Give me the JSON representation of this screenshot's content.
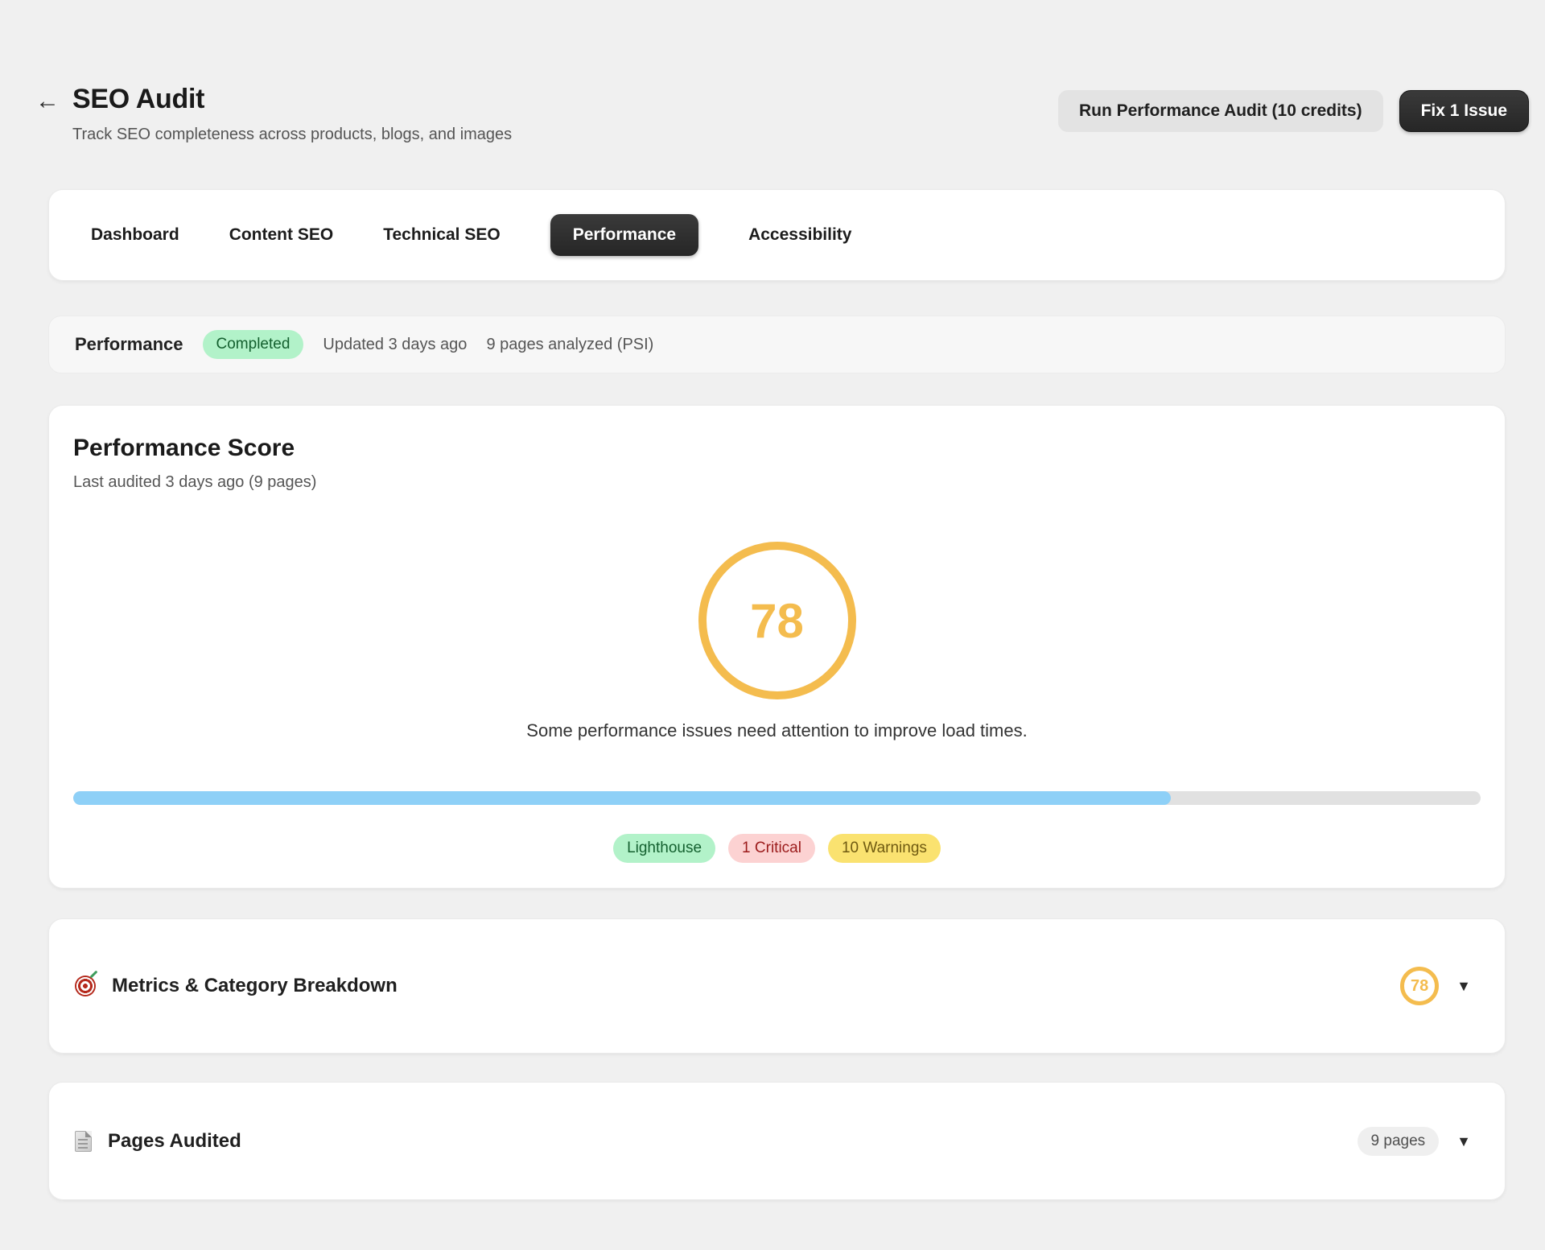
{
  "header": {
    "back_icon": "←",
    "title": "SEO Audit",
    "subtitle": "Track SEO completeness across products, blogs, and images",
    "run_audit_label": "Run Performance Audit (10 credits)",
    "fix_issue_label": "Fix 1 Issue"
  },
  "tabs": {
    "items": [
      {
        "label": "Dashboard",
        "active": false
      },
      {
        "label": "Content SEO",
        "active": false
      },
      {
        "label": "Technical SEO",
        "active": false
      },
      {
        "label": "Performance",
        "active": true
      },
      {
        "label": "Accessibility",
        "active": false
      }
    ]
  },
  "status_bar": {
    "title": "Performance",
    "badge": "Completed",
    "updated": "Updated 3 days ago",
    "pages_analyzed": "9 pages analyzed (PSI)"
  },
  "score_card": {
    "title": "Performance Score",
    "subtitle": "Last audited 3 days ago (9 pages)",
    "score": "78",
    "message": "Some performance issues need attention to improve load times.",
    "progress_percent": 78,
    "badges": [
      {
        "label": "Lighthouse",
        "type": "green"
      },
      {
        "label": "1 Critical",
        "type": "red"
      },
      {
        "label": "10 Warnings",
        "type": "yellow"
      }
    ]
  },
  "metrics_card": {
    "title": "Metrics & Category Breakdown",
    "icon": "target",
    "score": "78",
    "chevron": "▼"
  },
  "pages_card": {
    "title": "Pages Audited",
    "icon": "page",
    "badge": "9 pages",
    "chevron": "▼"
  },
  "colors": {
    "accent_orange": "#f4bc4e",
    "progress_blue": "#8ed0f7",
    "badge_green_bg": "#b2f2c9",
    "badge_red_bg": "#fcd2d2",
    "badge_yellow_bg": "#fae270",
    "dark_button": "#2d2d2d",
    "page_background": "#f0f0f0"
  }
}
